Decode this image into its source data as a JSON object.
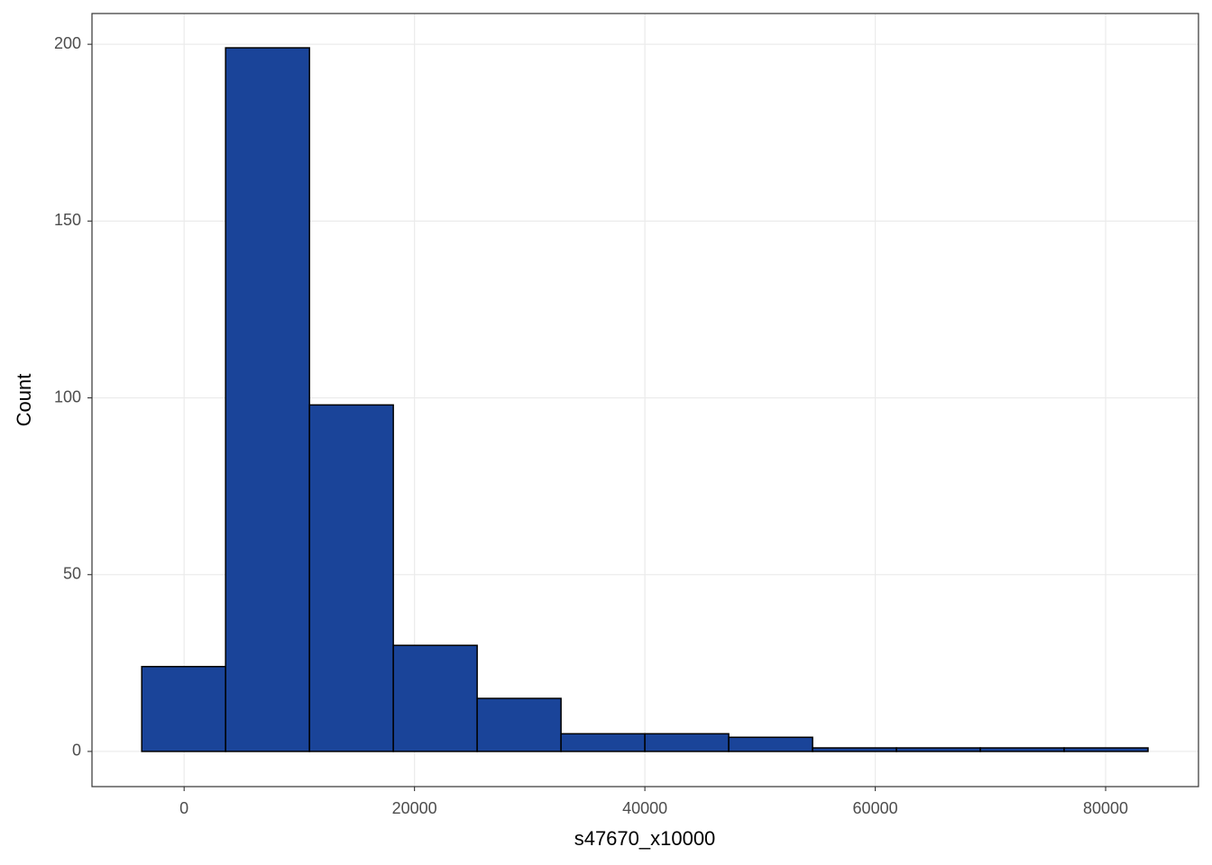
{
  "chart_data": {
    "type": "histogram",
    "x_label": "s47670_x10000",
    "y_label": "Count",
    "bins": [
      -3680,
      3600,
      10880,
      18160,
      25440,
      32720,
      40000,
      47280,
      54560,
      61840,
      69120,
      76400,
      83680
    ],
    "values": [
      24,
      199,
      98,
      30,
      15,
      5,
      5,
      4,
      1,
      1,
      1,
      1
    ],
    "color": "#1a4499",
    "edge_color": "#000000",
    "xlim": [
      -8000,
      88060
    ],
    "xticks": [
      0,
      20000,
      40000,
      60000,
      80000
    ],
    "ylim": [
      -9.95,
      208.7
    ],
    "yticks": [
      0,
      50,
      100,
      150,
      200
    ],
    "grid": true
  }
}
